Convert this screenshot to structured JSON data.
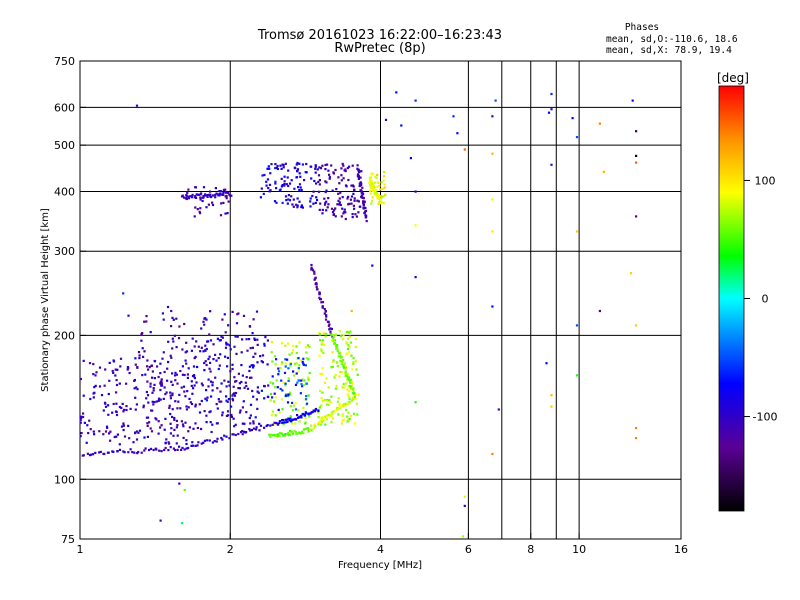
{
  "chart_data": {
    "type": "scatter",
    "title": "Tromsø 20161023 16:22:00–16:23:43",
    "subtitle": "RwPretec (8p)",
    "xlabel": "Frequency [MHz]",
    "ylabel": "Stationary phase Virtual Height [km]",
    "x_scale": "log",
    "y_scale": "log",
    "xlim": [
      1,
      16
    ],
    "ylim": [
      75,
      750
    ],
    "x_ticks": [
      1,
      2,
      4,
      6,
      8,
      10,
      16
    ],
    "x_tick_labels": [
      "1",
      "2",
      "4",
      "6",
      "8",
      "10",
      "16"
    ],
    "y_ticks": [
      75,
      100,
      200,
      300,
      400,
      500,
      600,
      750
    ],
    "y_tick_labels": [
      "75",
      "100",
      "200",
      "300",
      "400",
      "500",
      "600",
      "750"
    ],
    "x_gridlines": [
      2,
      4,
      6,
      7,
      8,
      9,
      10
    ],
    "y_gridlines": [
      100,
      200,
      300,
      400,
      500,
      600
    ],
    "legend": {
      "title": "Phases",
      "lines": [
        "mean, sd,O:-110.6, 18.6",
        "mean, sd,X:  78.9, 19.4"
      ]
    },
    "colorbar": {
      "unit": "[deg]",
      "range": [
        -180,
        180
      ],
      "ticks": [
        100,
        0,
        -100
      ],
      "tick_labels": [
        "100",
        "0",
        "-100"
      ]
    },
    "traces": [
      {
        "freq": [
          1.0,
          1.6
        ],
        "height": [
          113,
          116
        ],
        "phase": -105
      },
      {
        "freq": [
          1.6,
          2.5
        ],
        "height": [
          116,
          131
        ],
        "phase": -100
      },
      {
        "freq": [
          2.5,
          3.0
        ],
        "height": [
          131,
          140
        ],
        "phase": -80
      },
      {
        "freq": [
          2.4,
          2.9
        ],
        "height": [
          123,
          127
        ],
        "phase": 55
      },
      {
        "freq": [
          2.9,
          3.6
        ],
        "height": [
          128,
          150
        ],
        "phase": 80
      },
      {
        "freq": [
          2.9,
          3.2
        ],
        "height": [
          280,
          200
        ],
        "phase": -115
      },
      {
        "freq": [
          3.2,
          3.55
        ],
        "height": [
          200,
          150
        ],
        "phase": 60
      },
      {
        "freq": [
          3.6,
          3.75
        ],
        "height": [
          450,
          350
        ],
        "phase": -110
      },
      {
        "freq": [
          1.6,
          2.0
        ],
        "height": [
          390,
          395
        ],
        "phase": -105
      },
      {
        "freq": [
          3.8,
          4.0
        ],
        "height": [
          425,
          380
        ],
        "phase": 85
      }
    ],
    "clouds": [
      {
        "freq": [
          1.0,
          1.7
        ],
        "height": [
          118,
          180
        ],
        "phase": -105,
        "n": 220
      },
      {
        "freq": [
          1.3,
          2.3
        ],
        "height": [
          125,
          230
        ],
        "phase": -110,
        "n": 200
      },
      {
        "freq": [
          1.7,
          2.5
        ],
        "height": [
          130,
          200
        ],
        "phase": -90,
        "n": 120
      },
      {
        "freq": [
          2.4,
          2.9
        ],
        "height": [
          130,
          195
        ],
        "phase": 70,
        "n": 90
      },
      {
        "freq": [
          3.0,
          3.6
        ],
        "height": [
          130,
          205
        ],
        "phase": 75,
        "n": 150
      },
      {
        "freq": [
          2.5,
          2.85
        ],
        "height": [
          140,
          180
        ],
        "phase": -60,
        "n": 40
      },
      {
        "freq": [
          1.6,
          2.0
        ],
        "height": [
          350,
          410
        ],
        "phase": -110,
        "n": 40
      },
      {
        "freq": [
          2.3,
          3.0
        ],
        "height": [
          370,
          460
        ],
        "phase": -85,
        "n": 110
      },
      {
        "freq": [
          3.0,
          3.7
        ],
        "height": [
          350,
          460
        ],
        "phase": -115,
        "n": 110
      },
      {
        "freq": [
          3.8,
          4.1
        ],
        "height": [
          375,
          440
        ],
        "phase": 90,
        "n": 40
      }
    ],
    "isolated": [
      {
        "freq": 1.3,
        "height": 605,
        "phase": -100
      },
      {
        "freq": 1.22,
        "height": 245,
        "phase": -60
      },
      {
        "freq": 1.25,
        "height": 220,
        "phase": -100
      },
      {
        "freq": 1.62,
        "height": 95,
        "phase": 55
      },
      {
        "freq": 1.45,
        "height": 82,
        "phase": -110
      },
      {
        "freq": 1.6,
        "height": 81,
        "phase": 20
      },
      {
        "freq": 1.58,
        "height": 98,
        "phase": -110
      },
      {
        "freq": 4.3,
        "height": 645,
        "phase": -70
      },
      {
        "freq": 4.4,
        "height": 550,
        "phase": -70
      },
      {
        "freq": 4.1,
        "height": 565,
        "phase": -110
      },
      {
        "freq": 4.7,
        "height": 620,
        "phase": -60
      },
      {
        "freq": 4.6,
        "height": 470,
        "phase": -70
      },
      {
        "freq": 4.7,
        "height": 400,
        "phase": -70
      },
      {
        "freq": 4.7,
        "height": 340,
        "phase": 90
      },
      {
        "freq": 4.7,
        "height": 265,
        "phase": -70
      },
      {
        "freq": 4.7,
        "height": 145,
        "phase": 40
      },
      {
        "freq": 5.6,
        "height": 575,
        "phase": -60
      },
      {
        "freq": 5.7,
        "height": 530,
        "phase": -70
      },
      {
        "freq": 5.9,
        "height": 490,
        "phase": 150
      },
      {
        "freq": 5.9,
        "height": 92,
        "phase": 80
      },
      {
        "freq": 5.9,
        "height": 88,
        "phase": -100
      },
      {
        "freq": 5.85,
        "height": 76,
        "phase": 70
      },
      {
        "freq": 6.8,
        "height": 620,
        "phase": -50
      },
      {
        "freq": 6.7,
        "height": 575,
        "phase": -110
      },
      {
        "freq": 6.7,
        "height": 480,
        "phase": 120
      },
      {
        "freq": 6.7,
        "height": 385,
        "phase": 85
      },
      {
        "freq": 6.7,
        "height": 330,
        "phase": 100
      },
      {
        "freq": 6.7,
        "height": 230,
        "phase": -70
      },
      {
        "freq": 6.9,
        "height": 140,
        "phase": -110
      },
      {
        "freq": 6.7,
        "height": 113,
        "phase": 140
      },
      {
        "freq": 8.8,
        "height": 640,
        "phase": -60
      },
      {
        "freq": 8.8,
        "height": 595,
        "phase": -100
      },
      {
        "freq": 8.7,
        "height": 585,
        "phase": -70
      },
      {
        "freq": 8.8,
        "height": 455,
        "phase": -110
      },
      {
        "freq": 8.6,
        "height": 175,
        "phase": -70
      },
      {
        "freq": 8.8,
        "height": 150,
        "phase": 120
      },
      {
        "freq": 8.8,
        "height": 142,
        "phase": 110
      },
      {
        "freq": 9.7,
        "height": 570,
        "phase": -70
      },
      {
        "freq": 9.9,
        "height": 520,
        "phase": -50
      },
      {
        "freq": 9.9,
        "height": 330,
        "phase": 110
      },
      {
        "freq": 9.9,
        "height": 210,
        "phase": -50
      },
      {
        "freq": 9.9,
        "height": 165,
        "phase": 40
      },
      {
        "freq": 11.0,
        "height": 555,
        "phase": 140
      },
      {
        "freq": 11.0,
        "height": 225,
        "phase": -130
      },
      {
        "freq": 11.2,
        "height": 440,
        "phase": 120
      },
      {
        "freq": 12.8,
        "height": 620,
        "phase": -70
      },
      {
        "freq": 13.0,
        "height": 535,
        "phase": -150
      },
      {
        "freq": 13.0,
        "height": 475,
        "phase": -170
      },
      {
        "freq": 13.0,
        "height": 460,
        "phase": 150
      },
      {
        "freq": 13.0,
        "height": 355,
        "phase": -120
      },
      {
        "freq": 12.7,
        "height": 270,
        "phase": 110
      },
      {
        "freq": 13.0,
        "height": 210,
        "phase": 110
      },
      {
        "freq": 13.0,
        "height": 128,
        "phase": 140
      },
      {
        "freq": 13.0,
        "height": 122,
        "phase": 140
      },
      {
        "freq": 3.85,
        "height": 280,
        "phase": -70
      },
      {
        "freq": 3.5,
        "height": 225,
        "phase": 120
      }
    ]
  }
}
